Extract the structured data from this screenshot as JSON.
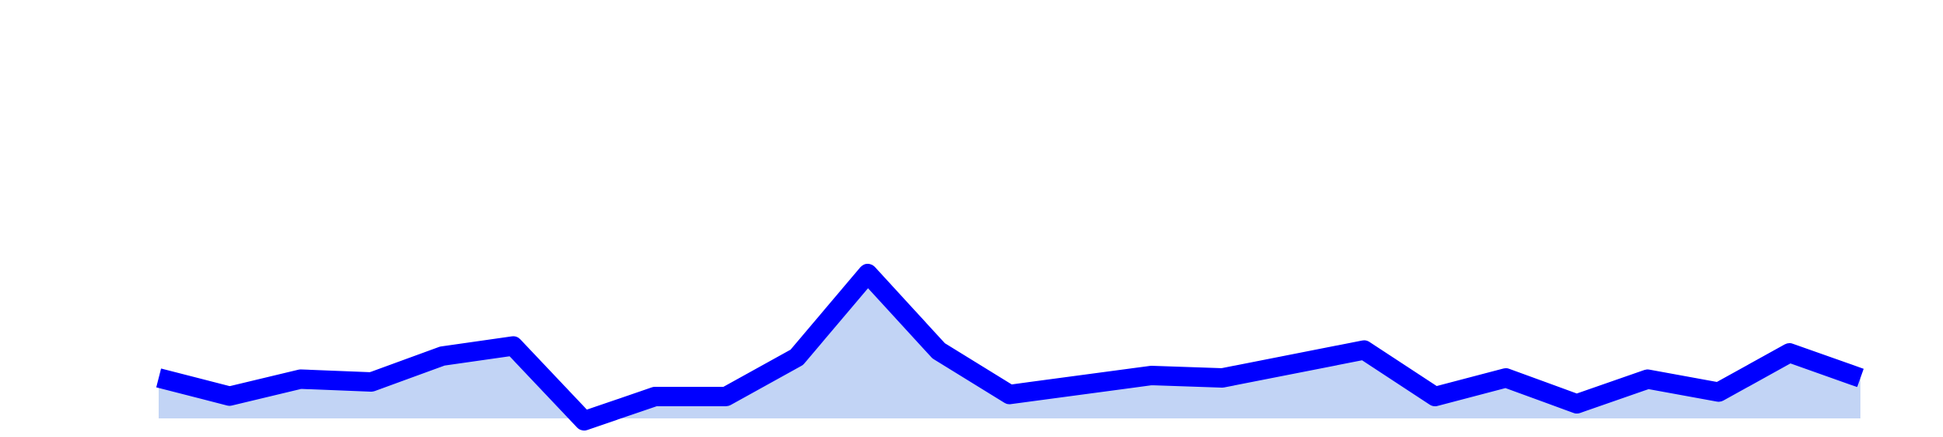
{
  "colors": {
    "line": "#0000ff",
    "area": "#c2d4f5",
    "background": "#ffffff"
  },
  "chart_data": {
    "type": "area",
    "title": "",
    "xlabel": "",
    "ylabel": "",
    "grid": false,
    "legend": "none",
    "x": [
      0,
      1,
      2,
      3,
      4,
      5,
      6,
      7,
      8,
      9,
      10,
      11,
      12,
      13,
      14,
      15,
      16,
      17,
      18,
      19,
      20,
      21,
      22,
      23,
      24
    ],
    "series": [
      {
        "values": [
          9.0,
          4.5,
          8.7,
          8.0,
          14.4,
          16.9,
          -1.6,
          4.4,
          4.4,
          14.1,
          34.8,
          15.7,
          4.9,
          9.6,
          9.0,
          15.9,
          4.4,
          9.0,
          2.6,
          8.7,
          5.5,
          15.2,
          9.0
        ],
        "x": [
          0,
          1,
          2,
          3,
          4,
          5,
          6,
          7,
          8,
          9,
          10,
          11,
          12,
          14,
          15,
          17,
          18,
          19,
          20,
          21,
          22,
          23,
          24
        ]
      }
    ],
    "ylim": [
      -1,
      100
    ],
    "xlim": [
      0,
      24
    ]
  }
}
